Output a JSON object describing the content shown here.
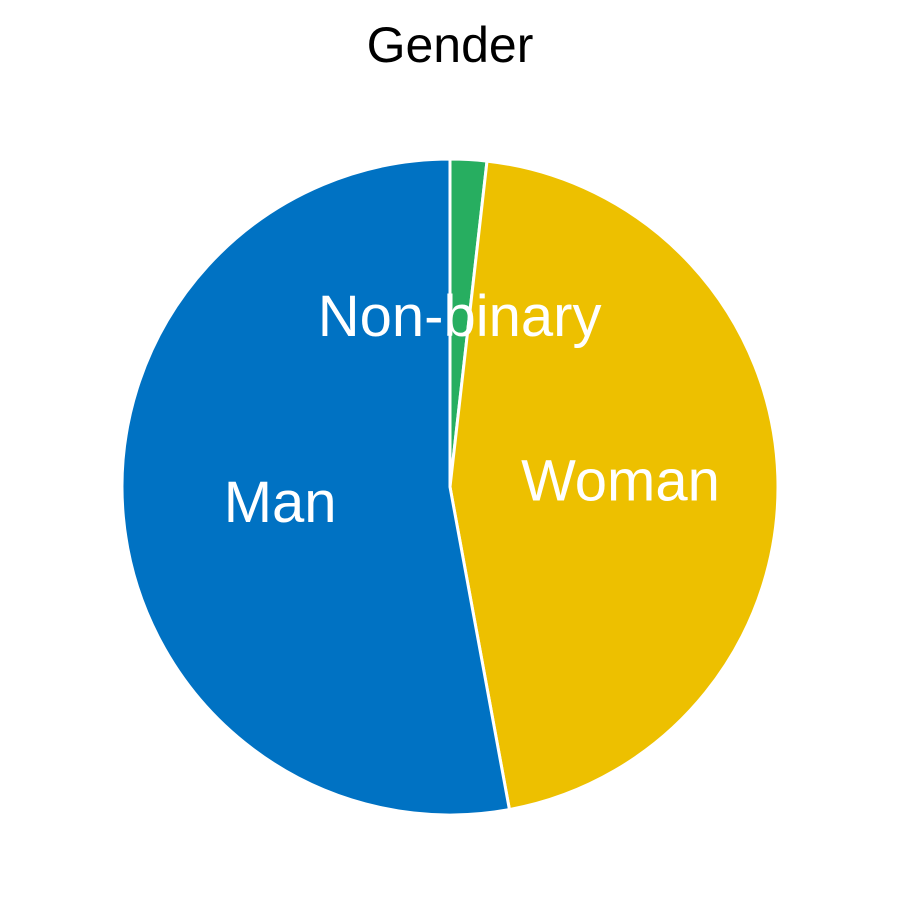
{
  "chart_data": {
    "type": "pie",
    "title": "Gender",
    "start_angle_deg": 0,
    "direction": "clockwise",
    "categories": [
      "Non-binary",
      "Woman",
      "Man"
    ],
    "values": [
      1.8,
      45.3,
      52.9
    ],
    "colors": [
      "#27AE60",
      "#EDC000",
      "#0072C3"
    ],
    "label_color": "#FFFFFF",
    "edge_color": "#FFFFFF"
  }
}
